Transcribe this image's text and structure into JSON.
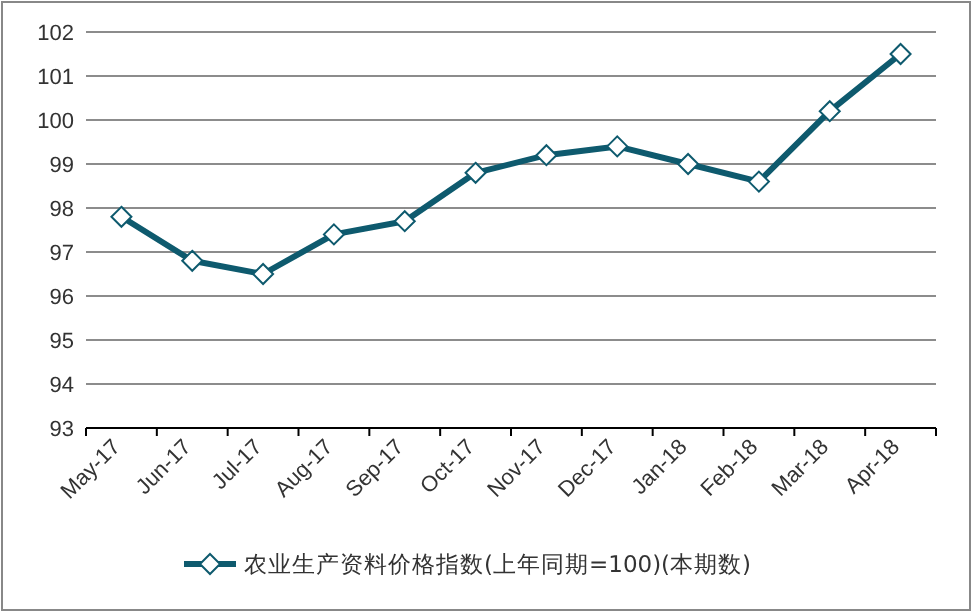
{
  "chart_data": {
    "type": "line",
    "categories": [
      "May-17",
      "Jun-17",
      "Jul-17",
      "Aug-17",
      "Sep-17",
      "Oct-17",
      "Nov-17",
      "Dec-17",
      "Jan-18",
      "Feb-18",
      "Mar-18",
      "Apr-18"
    ],
    "series": [
      {
        "name": "农业生产资料价格指数(上年同期=100)(本期数)",
        "color": "#0e5a6e",
        "values": [
          97.8,
          96.8,
          96.5,
          97.4,
          97.7,
          98.8,
          99.2,
          99.4,
          99.0,
          98.6,
          100.2,
          101.5
        ]
      }
    ],
    "ylim": [
      93,
      102
    ],
    "yticks": [
      93,
      94,
      95,
      96,
      97,
      98,
      99,
      100,
      101,
      102
    ],
    "grid": "y",
    "legend": "bottom",
    "marker": "diamond",
    "line_style": "solid"
  }
}
